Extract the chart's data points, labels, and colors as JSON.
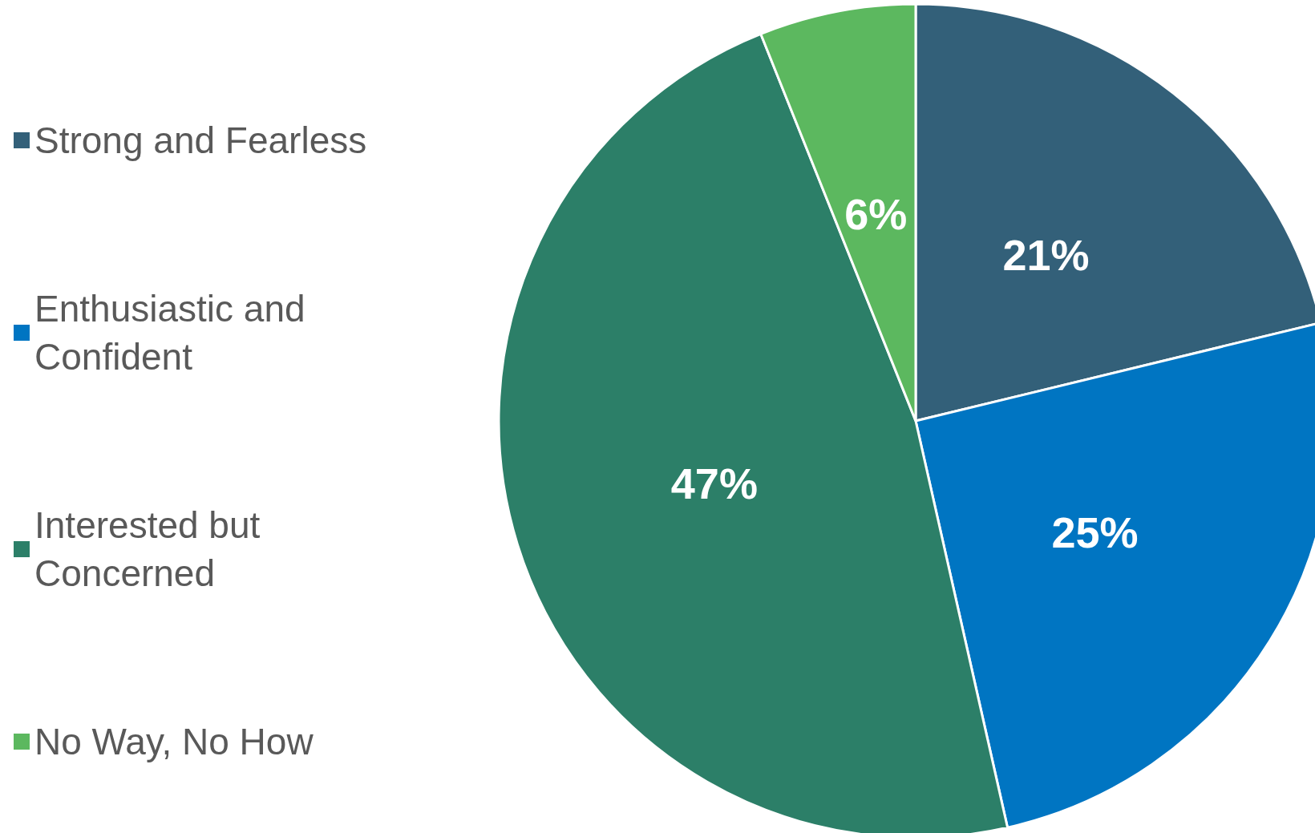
{
  "chart_data": {
    "type": "pie",
    "categories": [
      "Strong and Fearless",
      "Enthusiastic and Confident",
      "Interested but Concerned",
      "No Way, No How"
    ],
    "values": [
      21,
      25,
      47,
      6
    ],
    "value_labels": [
      "21%",
      "25%",
      "47%",
      "6%"
    ],
    "colors": [
      "#336079",
      "#0075c2",
      "#2c7f68",
      "#5cb85f"
    ],
    "legend": "left"
  }
}
